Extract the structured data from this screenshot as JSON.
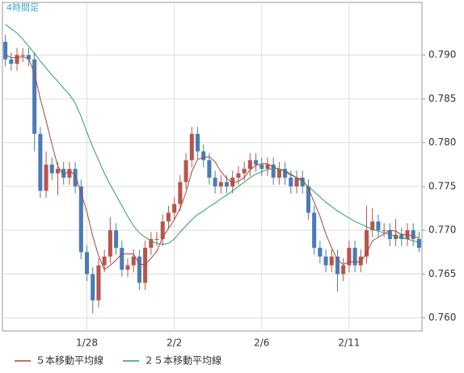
{
  "chart_data": {
    "type": "candlestick",
    "title": "4時間足",
    "categories": [
      null,
      null,
      null,
      null,
      null,
      null,
      null,
      null,
      null,
      null,
      null,
      null,
      null,
      null,
      "1/28",
      null,
      null,
      null,
      null,
      null,
      null,
      null,
      null,
      null,
      null,
      null,
      null,
      null,
      null,
      "2/2",
      null,
      null,
      null,
      null,
      null,
      null,
      null,
      null,
      null,
      null,
      null,
      null,
      null,
      null,
      "2/6",
      null,
      null,
      null,
      null,
      null,
      null,
      null,
      null,
      null,
      null,
      null,
      null,
      null,
      null,
      "2/11",
      null,
      null,
      null,
      null,
      null,
      null,
      null,
      null,
      null,
      null,
      null,
      null
    ],
    "open": [
      0.7915,
      0.7895,
      0.789,
      0.79,
      0.79,
      0.7895,
      0.781,
      0.7745,
      0.7775,
      0.7765,
      0.777,
      0.776,
      0.777,
      0.775,
      0.7675,
      0.765,
      0.762,
      0.766,
      0.767,
      0.77,
      0.768,
      0.7655,
      0.766,
      0.767,
      0.764,
      0.768,
      0.769,
      0.769,
      0.771,
      0.772,
      0.773,
      0.7755,
      0.778,
      0.781,
      0.779,
      0.778,
      0.776,
      0.775,
      0.7755,
      0.775,
      0.776,
      0.7765,
      0.777,
      0.778,
      0.7775,
      0.777,
      0.7775,
      0.776,
      0.777,
      0.776,
      0.775,
      0.776,
      0.775,
      0.772,
      0.768,
      0.767,
      0.766,
      0.767,
      0.765,
      0.766,
      0.768,
      0.766,
      0.767,
      0.77,
      0.771,
      0.77,
      0.77,
      0.769,
      0.7695,
      0.769,
      0.77,
      0.769
    ],
    "high": [
      0.7923,
      0.7903,
      0.7908,
      0.7908,
      0.7908,
      0.7903,
      0.7818,
      0.779,
      0.7783,
      0.7778,
      0.7778,
      0.7778,
      0.7778,
      0.7758,
      0.7683,
      0.7658,
      0.7668,
      0.7678,
      0.7715,
      0.7708,
      0.7688,
      0.7668,
      0.7678,
      0.7678,
      0.7688,
      0.7698,
      0.7698,
      0.7718,
      0.7728,
      0.7738,
      0.7763,
      0.7788,
      0.7818,
      0.7818,
      0.7798,
      0.7788,
      0.7768,
      0.7763,
      0.7763,
      0.7768,
      0.7773,
      0.7778,
      0.7788,
      0.7788,
      0.7783,
      0.7783,
      0.7783,
      0.7778,
      0.7778,
      0.7768,
      0.7768,
      0.7768,
      0.7758,
      0.7728,
      0.7688,
      0.7678,
      0.7678,
      0.7678,
      0.7668,
      0.7688,
      0.7688,
      0.7678,
      0.7728,
      0.7725,
      0.7718,
      0.7708,
      0.7708,
      0.7713,
      0.7703,
      0.7708,
      0.7708,
      0.7698
    ],
    "low": [
      0.7887,
      0.7882,
      0.7882,
      0.7892,
      0.7887,
      0.779,
      0.7737,
      0.7737,
      0.7757,
      0.774,
      0.7752,
      0.7752,
      0.7742,
      0.7667,
      0.7642,
      0.7605,
      0.7612,
      0.7652,
      0.7662,
      0.7672,
      0.7647,
      0.7647,
      0.7652,
      0.7632,
      0.7632,
      0.7672,
      0.7682,
      0.7682,
      0.7702,
      0.7712,
      0.7722,
      0.7747,
      0.7772,
      0.7782,
      0.7772,
      0.7752,
      0.7742,
      0.7742,
      0.7742,
      0.7742,
      0.7752,
      0.7757,
      0.7762,
      0.7767,
      0.7762,
      0.7762,
      0.7752,
      0.7752,
      0.7752,
      0.7742,
      0.7742,
      0.7742,
      0.7712,
      0.7672,
      0.7662,
      0.7652,
      0.7652,
      0.763,
      0.7642,
      0.7652,
      0.7652,
      0.7652,
      0.7662,
      0.7692,
      0.7692,
      0.7692,
      0.7682,
      0.7682,
      0.7682,
      0.7682,
      0.7682,
      0.7675
    ],
    "close": [
      0.7895,
      0.789,
      0.79,
      0.79,
      0.7895,
      0.781,
      0.7745,
      0.7775,
      0.7765,
      0.777,
      0.776,
      0.777,
      0.775,
      0.7675,
      0.765,
      0.762,
      0.766,
      0.767,
      0.77,
      0.768,
      0.7655,
      0.766,
      0.767,
      0.764,
      0.768,
      0.769,
      0.769,
      0.771,
      0.772,
      0.773,
      0.7755,
      0.778,
      0.781,
      0.779,
      0.778,
      0.776,
      0.775,
      0.7755,
      0.775,
      0.776,
      0.7765,
      0.777,
      0.778,
      0.7775,
      0.777,
      0.7775,
      0.776,
      0.777,
      0.776,
      0.775,
      0.776,
      0.775,
      0.772,
      0.768,
      0.767,
      0.766,
      0.767,
      0.765,
      0.766,
      0.768,
      0.766,
      0.767,
      0.77,
      0.771,
      0.77,
      0.77,
      0.769,
      0.7695,
      0.769,
      0.77,
      0.769,
      0.768
    ],
    "up_color": "#b5564c",
    "down_color": "#4a7bb7",
    "series": [
      {
        "name": "５本移動平均線",
        "color": "#a8443c",
        "values": [
          0.79,
          0.7897,
          0.7897,
          0.7898,
          0.7896,
          0.7879,
          0.785,
          0.7825,
          0.7798,
          0.7773,
          0.7763,
          0.7768,
          0.7763,
          0.7743,
          0.7721,
          0.7693,
          0.7671,
          0.7655,
          0.766,
          0.7666,
          0.7673,
          0.7673,
          0.7673,
          0.7661,
          0.7661,
          0.7668,
          0.7676,
          0.7692,
          0.7702,
          0.7712,
          0.7725,
          0.7743,
          0.7767,
          0.7781,
          0.7783,
          0.7784,
          0.7778,
          0.7767,
          0.7759,
          0.7754,
          0.7756,
          0.776,
          0.7769,
          0.7774,
          0.7776,
          0.7776,
          0.7772,
          0.777,
          0.7767,
          0.7763,
          0.776,
          0.7758,
          0.7748,
          0.7732,
          0.7716,
          0.7696,
          0.768,
          0.7666,
          0.7661,
          0.7664,
          0.7664,
          0.7664,
          0.7674,
          0.7688,
          0.7692,
          0.7696,
          0.77,
          0.7699,
          0.7695,
          0.7695,
          0.7693,
          0.7691
        ]
      },
      {
        "name": "２５本移動平均線",
        "color": "#2e9c6e",
        "values": [
          0.7935,
          0.793,
          0.7925,
          0.7918,
          0.791,
          0.7902,
          0.7893,
          0.7885,
          0.7877,
          0.787,
          0.7862,
          0.7855,
          0.7845,
          0.783,
          0.7812,
          0.7795,
          0.778,
          0.7765,
          0.7752,
          0.774,
          0.7728,
          0.7716,
          0.7705,
          0.7697,
          0.7692,
          0.7688,
          0.7685,
          0.7684,
          0.7685,
          0.769,
          0.7698,
          0.7705,
          0.7712,
          0.7718,
          0.7722,
          0.7727,
          0.7731,
          0.7736,
          0.774,
          0.7745,
          0.775,
          0.7755,
          0.776,
          0.7764,
          0.7767,
          0.7769,
          0.7771,
          0.777,
          0.7768,
          0.7764,
          0.776,
          0.7755,
          0.775,
          0.7744,
          0.7738,
          0.7732,
          0.7727,
          0.7722,
          0.7718,
          0.7714,
          0.771,
          0.7707,
          0.7704,
          0.7701,
          0.7699,
          0.7697,
          0.7695,
          0.7693,
          0.7691,
          0.769,
          0.7688,
          0.7686
        ]
      }
    ],
    "ylim": [
      0.7585,
      0.796
    ],
    "yticks": [
      {
        "value": 0.76,
        "label": "0.760"
      },
      {
        "value": 0.765,
        "label": "0.765"
      },
      {
        "value": 0.77,
        "label": "0.770"
      },
      {
        "value": 0.775,
        "label": "0.775"
      },
      {
        "value": 0.78,
        "label": "0.780"
      },
      {
        "value": 0.785,
        "label": "0.785"
      },
      {
        "value": 0.79,
        "label": "0.790"
      }
    ],
    "grid": true
  }
}
